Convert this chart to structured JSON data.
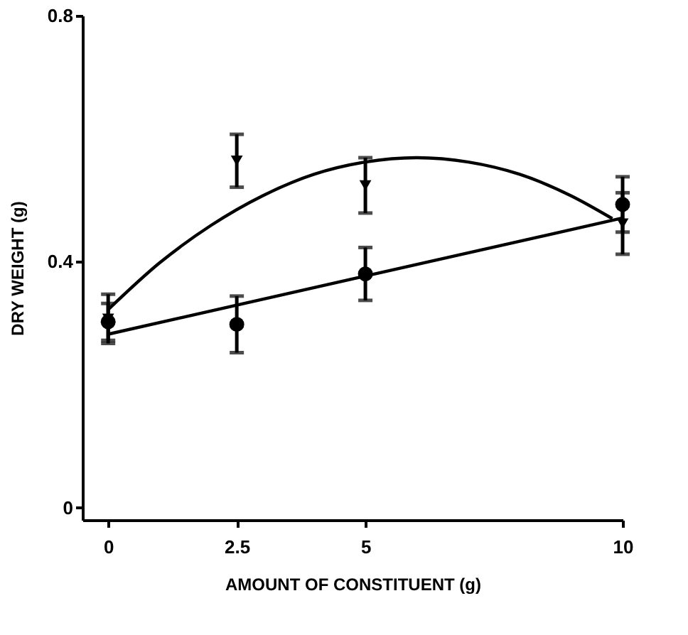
{
  "chart_data": {
    "type": "scatter",
    "xlabel": "AMOUNT OF CONSTITUENT  (g)",
    "ylabel": "DRY WEIGHT  (g)",
    "xlim": [
      -0.5,
      10
    ],
    "xticks": [
      0,
      2.5,
      5,
      10
    ],
    "ylim": [
      -0.02,
      0.8
    ],
    "yticks": [
      0,
      0.4,
      0.8
    ],
    "grid": false,
    "series": [
      {
        "marker": "triangle",
        "color": "#000000",
        "x": [
          0,
          2.5,
          5,
          10
        ],
        "values": [
          0.307,
          0.564,
          0.524,
          0.462
        ],
        "errors": [
          0.04,
          0.043,
          0.045,
          0.05
        ]
      },
      {
        "marker": "circle",
        "color": "#000000",
        "x": [
          0,
          2.5,
          5,
          10
        ],
        "values": [
          0.302,
          0.298,
          0.38,
          0.493
        ],
        "errors": [
          0.03,
          0.046,
          0.043,
          0.045
        ]
      },
      {
        "type": "line",
        "marker": "none",
        "line_style": "solid",
        "color": "#000000",
        "x": [
          0,
          1,
          2,
          3,
          4,
          5,
          6,
          7,
          8,
          9,
          9.8
        ],
        "values": [
          0.322,
          0.398,
          0.459,
          0.507,
          0.542,
          0.562,
          0.569,
          0.562,
          0.542,
          0.507,
          0.47
        ]
      },
      {
        "type": "line",
        "marker": "none",
        "line_style": "solid",
        "color": "#000000",
        "x": [
          0,
          10
        ],
        "values": [
          0.282,
          0.471
        ]
      }
    ]
  }
}
